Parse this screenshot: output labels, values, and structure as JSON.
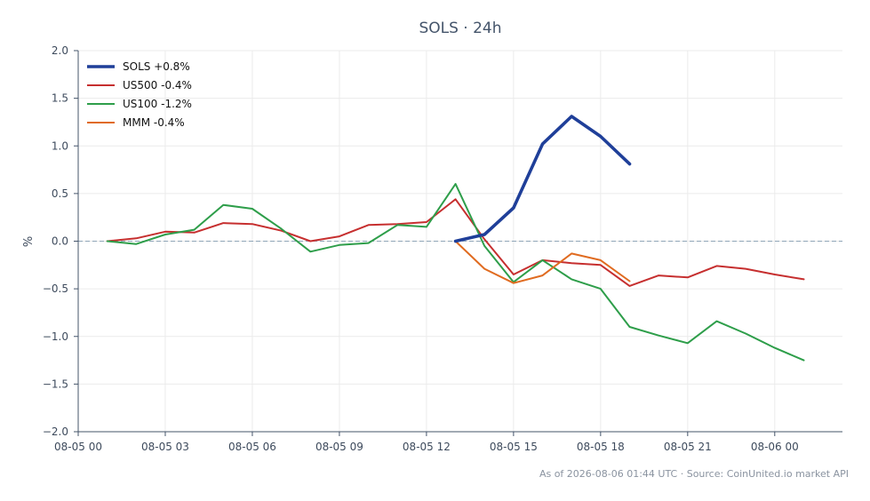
{
  "chart_data": {
    "type": "line",
    "title": "SOLS · 24h",
    "xlabel": "",
    "ylabel": "%",
    "ylim": [
      -2.0,
      2.0
    ],
    "yticks": [
      2.0,
      1.5,
      1.0,
      0.5,
      0.0,
      -0.5,
      -1.0,
      -1.5,
      -2.0
    ],
    "ytick_labels": [
      "2.0",
      "1.5",
      "1.0",
      "0.5",
      "0.0",
      "−0.5",
      "−1.0",
      "−1.5",
      "−2.0"
    ],
    "xlim": [
      "08-05 00:00",
      "08-06 02:20"
    ],
    "xticks": [
      "08-05 00",
      "08-05 03",
      "08-05 06",
      "08-05 09",
      "08-05 12",
      "08-05 15",
      "08-05 18",
      "08-05 21",
      "08-06 00"
    ],
    "grid": true,
    "reference_line": 0.0,
    "legend_position": "top-left",
    "series": [
      {
        "name": "SOLS +0.8%",
        "color": "#1f3f99",
        "x": [
          "08-05 13:00",
          "08-05 14:00",
          "08-05 15:00",
          "08-05 16:00",
          "08-05 17:00",
          "08-05 18:00",
          "08-05 19:00"
        ],
        "values": [
          0.0,
          0.07,
          0.35,
          1.02,
          1.31,
          1.1,
          0.81
        ]
      },
      {
        "name": "US500 -0.4%",
        "color": "#c62f2f",
        "x": [
          "08-05 01:00",
          "08-05 02:00",
          "08-05 03:00",
          "08-05 04:00",
          "08-05 05:00",
          "08-05 06:00",
          "08-05 07:00",
          "08-05 08:00",
          "08-05 09:00",
          "08-05 10:00",
          "08-05 11:00",
          "08-05 12:00",
          "08-05 13:00",
          "08-05 14:00",
          "08-05 15:00",
          "08-05 16:00",
          "08-05 17:00",
          "08-05 18:00",
          "08-05 19:00",
          "08-05 20:00",
          "08-05 21:00",
          "08-05 22:00",
          "08-05 23:00",
          "08-06 00:00",
          "08-06 01:00"
        ],
        "values": [
          0.0,
          0.03,
          0.1,
          0.09,
          0.19,
          0.18,
          0.11,
          0.0,
          0.05,
          0.17,
          0.18,
          0.2,
          0.44,
          0.02,
          -0.35,
          -0.2,
          -0.23,
          -0.25,
          -0.47,
          -0.36,
          -0.38,
          -0.26,
          -0.29,
          -0.35,
          -0.4
        ]
      },
      {
        "name": "US100 -1.2%",
        "color": "#2e9e4a",
        "x": [
          "08-05 01:00",
          "08-05 02:00",
          "08-05 03:00",
          "08-05 04:00",
          "08-05 05:00",
          "08-05 06:00",
          "08-05 07:00",
          "08-05 08:00",
          "08-05 09:00",
          "08-05 10:00",
          "08-05 11:00",
          "08-05 12:00",
          "08-05 13:00",
          "08-05 14:00",
          "08-05 15:00",
          "08-05 16:00",
          "08-05 17:00",
          "08-05 18:00",
          "08-05 19:00",
          "08-05 20:00",
          "08-05 21:00",
          "08-05 22:00",
          "08-05 23:00",
          "08-06 00:00",
          "08-06 01:00"
        ],
        "values": [
          0.0,
          -0.03,
          0.07,
          0.12,
          0.38,
          0.34,
          0.13,
          -0.11,
          -0.04,
          -0.02,
          0.17,
          0.15,
          0.6,
          -0.05,
          -0.43,
          -0.2,
          -0.4,
          -0.5,
          -0.9,
          -0.99,
          -1.07,
          -0.84,
          -0.97,
          -1.12,
          -1.25
        ]
      },
      {
        "name": "MMM -0.4%",
        "color": "#e06b20",
        "x": [
          "08-05 13:00",
          "08-05 14:00",
          "08-05 15:00",
          "08-05 16:00",
          "08-05 17:00",
          "08-05 18:00",
          "08-05 19:00"
        ],
        "values": [
          0.0,
          -0.29,
          -0.44,
          -0.36,
          -0.13,
          -0.2,
          -0.42
        ]
      }
    ]
  },
  "footer": {
    "text": "As of 2026-08-06 01:44 UTC · Source: CoinUnited.io market API"
  },
  "colors": {
    "axis": "#44546a",
    "grid": "#ebebeb",
    "zero_line": "#8fa5b8"
  }
}
